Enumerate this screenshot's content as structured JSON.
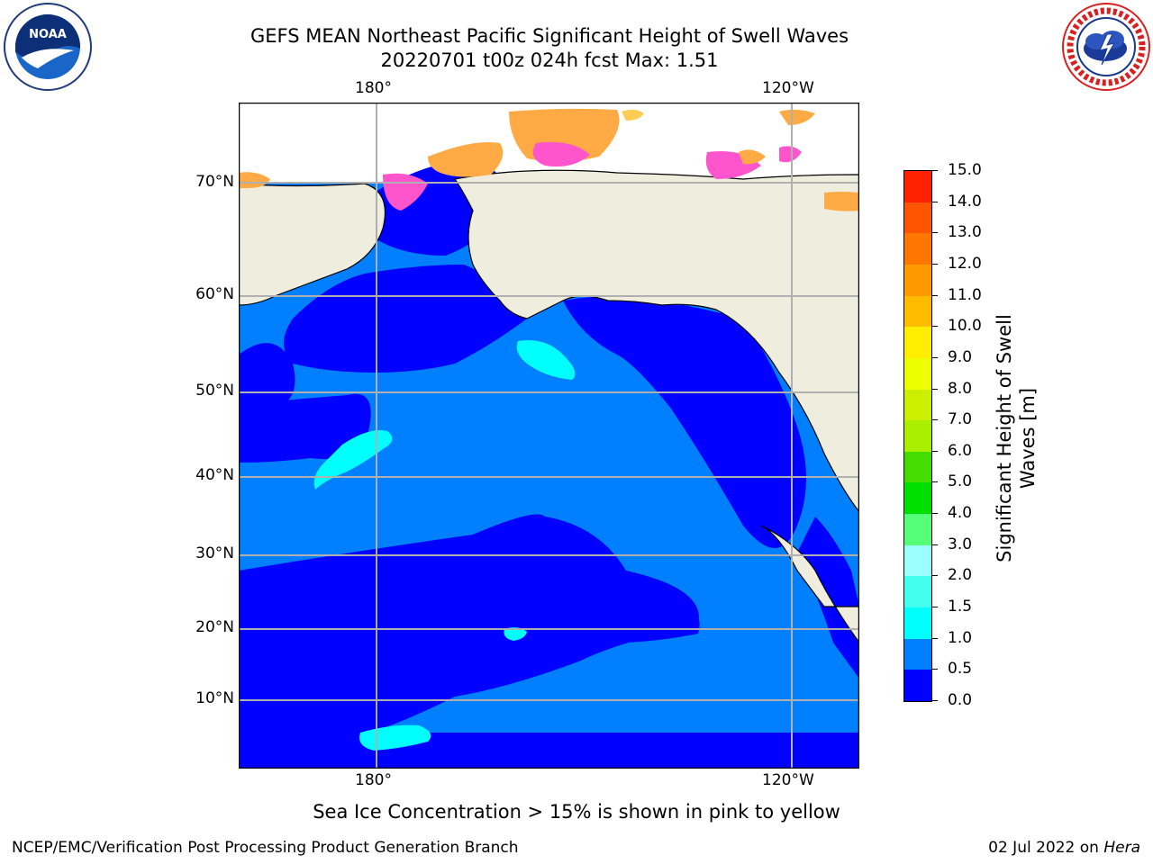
{
  "title": {
    "line1": "GEFS MEAN Northeast Pacific Significant Height of Swell Waves",
    "line2": "20220701 t00z 024h fcst   Max: 1.51"
  },
  "map": {
    "lon_labels_top": [
      "180°",
      "120°W"
    ],
    "lon_labels_bottom": [
      "180°",
      "120°W"
    ],
    "lat_labels": [
      "70°N",
      "60°N",
      "50°N",
      "40°N",
      "30°N",
      "20°N",
      "10°N"
    ],
    "colors": {
      "ocean_low": "#0000ff",
      "ocean_mid": "#0080ff",
      "ocean_high": "#00ffff",
      "land": "#efedde",
      "ice_pink": "#ff55cc",
      "ice_orange": "#ffaa44",
      "ice_yellow": "#ffcc55",
      "grid": "#b0b0b0"
    }
  },
  "colorbar": {
    "label_line1": "Significant Height of Swell",
    "label_line2": "Waves [m]",
    "ticks": [
      "0.0",
      "0.5",
      "1.0",
      "1.5",
      "2.0",
      "3.0",
      "4.0",
      "5.0",
      "6.0",
      "7.0",
      "8.0",
      "9.0",
      "10.0",
      "11.0",
      "12.0",
      "13.0",
      "14.0",
      "15.0"
    ],
    "colors": [
      "#0000ff",
      "#0080ff",
      "#00ffff",
      "#44ffee",
      "#99ffff",
      "#55ff77",
      "#00e000",
      "#44dd00",
      "#aaee00",
      "#ccee00",
      "#eeff00",
      "#ffee00",
      "#ffbb00",
      "#ff9900",
      "#ff7700",
      "#ff5500",
      "#ff2200"
    ]
  },
  "logos": {
    "noaa_text": "NOAA",
    "noaa_ring_text": "NATIONAL OCEANIC AND ATMOSPHERIC ADMINISTRATION · U.S. DEPARTMENT OF COMMERCE",
    "nws_ring_text": "NATIONAL WEATHER SERVICE"
  },
  "caption": "Sea Ice Concentration > 15% is shown in pink to yellow",
  "footer": {
    "left": "NCEP/EMC/Verification Post Processing Product Generation Branch",
    "right_date": "02 Jul 2022 on ",
    "right_host": "Hera"
  }
}
